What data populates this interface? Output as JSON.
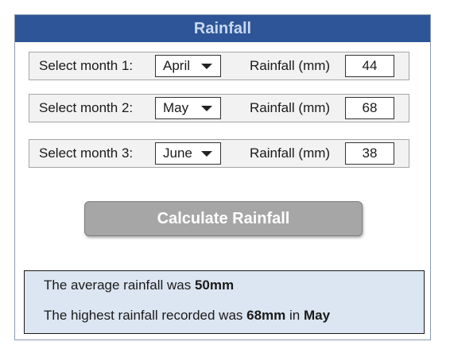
{
  "window": {
    "title": "Rainfall"
  },
  "rows": [
    {
      "label": "Select month 1:",
      "month": "April",
      "rain_label": "Rainfall (mm)",
      "rain_value": "44"
    },
    {
      "label": "Select month 2:",
      "month": "May",
      "rain_label": "Rainfall (mm)",
      "rain_value": "68"
    },
    {
      "label": "Select month 3:",
      "month": "June",
      "rain_label": "Rainfall (mm)",
      "rain_value": "38"
    }
  ],
  "button": {
    "label": "Calculate Rainfall"
  },
  "result": {
    "average_prefix": "The average rainfall was ",
    "average_value": "50mm",
    "highest_prefix": "The highest rainfall recorded was ",
    "highest_value": "68mm",
    "highest_mid": " in ",
    "highest_month": "May"
  },
  "colors": {
    "titlebar": "#2e5597",
    "title_text": "#c7d8f2",
    "button": "#a6a6a6",
    "result_panel": "#dce6f2"
  }
}
